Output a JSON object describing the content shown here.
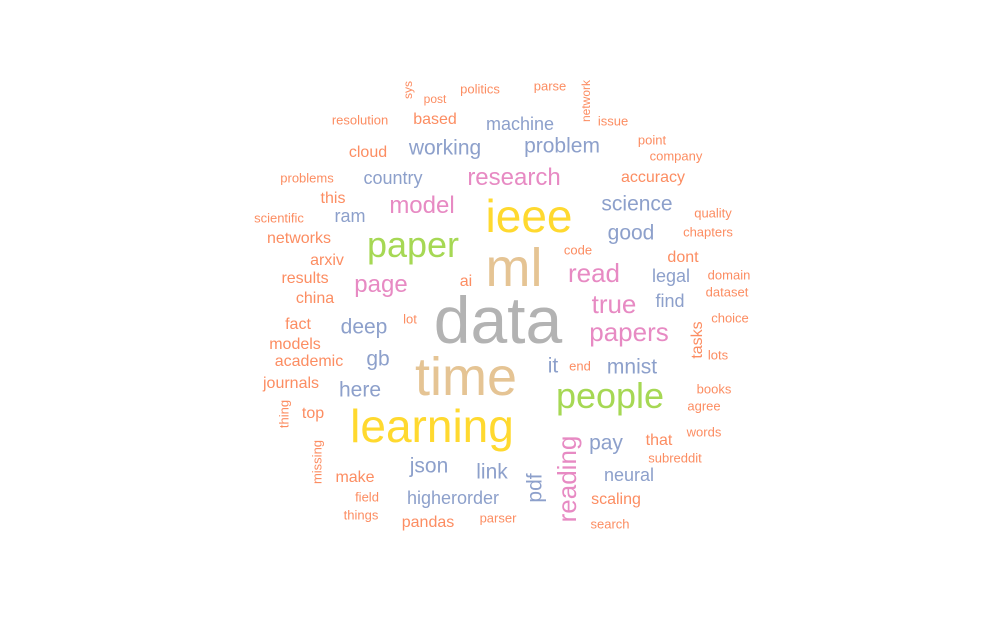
{
  "palette": {
    "gray": "#b3b3b3",
    "tan": "#e5c494",
    "yellow": "#ffd92f",
    "green": "#a6d854",
    "pink": "#e78ac3",
    "blue": "#8da0cb",
    "orange": "#fc8d62"
  },
  "words": [
    {
      "text": "data",
      "color": "gray"
    },
    {
      "text": "ml",
      "color": "tan"
    },
    {
      "text": "time",
      "color": "tan"
    },
    {
      "text": "ieee",
      "color": "yellow"
    },
    {
      "text": "learning",
      "color": "yellow"
    },
    {
      "text": "paper",
      "color": "green"
    },
    {
      "text": "people",
      "color": "green"
    },
    {
      "text": "research",
      "color": "pink"
    },
    {
      "text": "model",
      "color": "pink"
    },
    {
      "text": "page",
      "color": "pink"
    },
    {
      "text": "read",
      "color": "pink"
    },
    {
      "text": "true",
      "color": "pink"
    },
    {
      "text": "papers",
      "color": "pink"
    },
    {
      "text": "reading",
      "color": "pink"
    },
    {
      "text": "machine",
      "color": "blue"
    },
    {
      "text": "working",
      "color": "blue"
    },
    {
      "text": "problem",
      "color": "blue"
    },
    {
      "text": "country",
      "color": "blue"
    },
    {
      "text": "science",
      "color": "blue"
    },
    {
      "text": "ram",
      "color": "blue"
    },
    {
      "text": "good",
      "color": "blue"
    },
    {
      "text": "legal",
      "color": "blue"
    },
    {
      "text": "find",
      "color": "blue"
    },
    {
      "text": "deep",
      "color": "blue"
    },
    {
      "text": "gb",
      "color": "blue"
    },
    {
      "text": "it",
      "color": "blue"
    },
    {
      "text": "mnist",
      "color": "blue"
    },
    {
      "text": "here",
      "color": "blue"
    },
    {
      "text": "pay",
      "color": "blue"
    },
    {
      "text": "json",
      "color": "blue"
    },
    {
      "text": "link",
      "color": "blue"
    },
    {
      "text": "neural",
      "color": "blue"
    },
    {
      "text": "higherorder",
      "color": "blue"
    },
    {
      "text": "pdf",
      "color": "blue"
    },
    {
      "text": "sys",
      "color": "orange"
    },
    {
      "text": "post",
      "color": "orange"
    },
    {
      "text": "politics",
      "color": "orange"
    },
    {
      "text": "parse",
      "color": "orange"
    },
    {
      "text": "network",
      "color": "orange"
    },
    {
      "text": "resolution",
      "color": "orange"
    },
    {
      "text": "based",
      "color": "orange"
    },
    {
      "text": "issue",
      "color": "orange"
    },
    {
      "text": "point",
      "color": "orange"
    },
    {
      "text": "cloud",
      "color": "orange"
    },
    {
      "text": "company",
      "color": "orange"
    },
    {
      "text": "problems",
      "color": "orange"
    },
    {
      "text": "accuracy",
      "color": "orange"
    },
    {
      "text": "this",
      "color": "orange"
    },
    {
      "text": "scientific",
      "color": "orange"
    },
    {
      "text": "quality",
      "color": "orange"
    },
    {
      "text": "networks",
      "color": "orange"
    },
    {
      "text": "code",
      "color": "orange"
    },
    {
      "text": "chapters",
      "color": "orange"
    },
    {
      "text": "arxiv",
      "color": "orange"
    },
    {
      "text": "dont",
      "color": "orange"
    },
    {
      "text": "results",
      "color": "orange"
    },
    {
      "text": "ai",
      "color": "orange"
    },
    {
      "text": "domain",
      "color": "orange"
    },
    {
      "text": "china",
      "color": "orange"
    },
    {
      "text": "dataset",
      "color": "orange"
    },
    {
      "text": "lot",
      "color": "orange"
    },
    {
      "text": "fact",
      "color": "orange"
    },
    {
      "text": "choice",
      "color": "orange"
    },
    {
      "text": "tasks",
      "color": "orange"
    },
    {
      "text": "models",
      "color": "orange"
    },
    {
      "text": "lots",
      "color": "orange"
    },
    {
      "text": "academic",
      "color": "orange"
    },
    {
      "text": "end",
      "color": "orange"
    },
    {
      "text": "journals",
      "color": "orange"
    },
    {
      "text": "books",
      "color": "orange"
    },
    {
      "text": "thing",
      "color": "orange"
    },
    {
      "text": "top",
      "color": "orange"
    },
    {
      "text": "agree",
      "color": "orange"
    },
    {
      "text": "missing",
      "color": "orange"
    },
    {
      "text": "that",
      "color": "orange"
    },
    {
      "text": "words",
      "color": "orange"
    },
    {
      "text": "subreddit",
      "color": "orange"
    },
    {
      "text": "make",
      "color": "orange"
    },
    {
      "text": "field",
      "color": "orange"
    },
    {
      "text": "scaling",
      "color": "orange"
    },
    {
      "text": "things",
      "color": "orange"
    },
    {
      "text": "parser",
      "color": "orange"
    },
    {
      "text": "pandas",
      "color": "orange"
    },
    {
      "text": "search",
      "color": "orange"
    }
  ]
}
